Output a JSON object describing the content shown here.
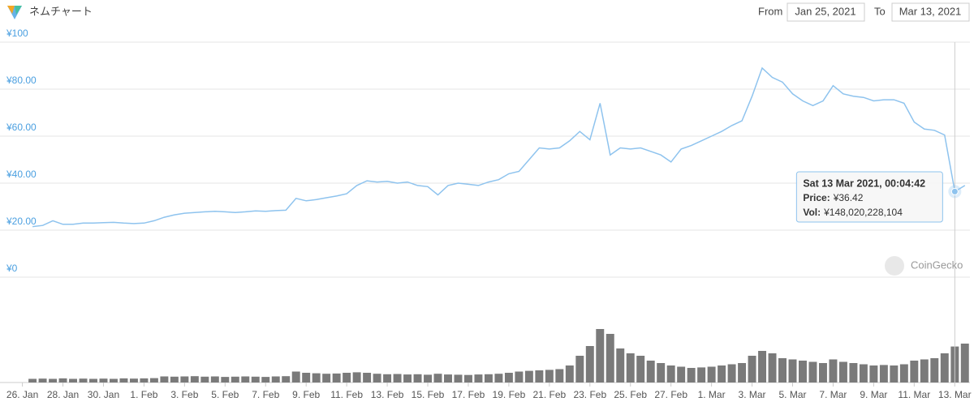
{
  "header": {
    "title": "ネムチャート",
    "from_label": "From",
    "from_date": "Jan 25, 2021",
    "to_label": "To",
    "to_date": "Mar 13, 2021"
  },
  "chart_data": {
    "type": "line",
    "x": [
      "2021-01-26T12:00",
      "2021-01-27T00:00",
      "2021-01-27T12:00",
      "2021-01-28T00:00",
      "2021-01-28T12:00",
      "2021-01-29T00:00",
      "2021-01-29T12:00",
      "2021-01-30T00:00",
      "2021-01-30T12:00",
      "2021-01-31T00:00",
      "2021-01-31T12:00",
      "2021-02-01T00:00",
      "2021-02-01T12:00",
      "2021-02-02T00:00",
      "2021-02-02T12:00",
      "2021-02-03T00:00",
      "2021-02-03T12:00",
      "2021-02-04T00:00",
      "2021-02-04T12:00",
      "2021-02-05T00:00",
      "2021-02-05T12:00",
      "2021-02-06T00:00",
      "2021-02-06T12:00",
      "2021-02-07T00:00",
      "2021-02-07T12:00",
      "2021-02-08T00:00",
      "2021-02-08T12:00",
      "2021-02-09T00:00",
      "2021-02-09T12:00",
      "2021-02-10T00:00",
      "2021-02-10T12:00",
      "2021-02-11T00:00",
      "2021-02-11T12:00",
      "2021-02-12T00:00",
      "2021-02-12T12:00",
      "2021-02-13T00:00",
      "2021-02-13T12:00",
      "2021-02-14T00:00",
      "2021-02-14T12:00",
      "2021-02-15T00:00",
      "2021-02-15T12:00",
      "2021-02-16T00:00",
      "2021-02-16T12:00",
      "2021-02-17T00:00",
      "2021-02-17T12:00",
      "2021-02-18T00:00",
      "2021-02-18T12:00",
      "2021-02-19T00:00",
      "2021-02-19T12:00",
      "2021-02-20T00:00",
      "2021-02-20T12:00",
      "2021-02-21T00:00",
      "2021-02-21T12:00",
      "2021-02-22T00:00",
      "2021-02-22T12:00",
      "2021-02-23T00:00",
      "2021-02-23T12:00",
      "2021-02-24T00:00",
      "2021-02-24T12:00",
      "2021-02-25T00:00",
      "2021-02-25T12:00",
      "2021-02-26T00:00",
      "2021-02-26T12:00",
      "2021-02-27T00:00",
      "2021-02-27T12:00",
      "2021-02-28T00:00",
      "2021-02-28T12:00",
      "2021-03-01T00:00",
      "2021-03-01T12:00",
      "2021-03-02T00:00",
      "2021-03-02T12:00",
      "2021-03-03T00:00",
      "2021-03-03T12:00",
      "2021-03-04T00:00",
      "2021-03-04T12:00",
      "2021-03-05T00:00",
      "2021-03-05T12:00",
      "2021-03-06T00:00",
      "2021-03-06T12:00",
      "2021-03-07T00:00",
      "2021-03-07T12:00",
      "2021-03-08T00:00",
      "2021-03-08T12:00",
      "2021-03-09T00:00",
      "2021-03-09T12:00",
      "2021-03-10T00:00",
      "2021-03-10T12:00",
      "2021-03-11T00:00",
      "2021-03-11T12:00",
      "2021-03-12T00:00",
      "2021-03-12T12:00",
      "2021-03-13T00:04:42",
      "2021-03-13T12:00"
    ],
    "series": [
      {
        "name": "Price",
        "color": "#8ec3ee",
        "values": [
          21.5,
          22,
          24,
          22.5,
          22.5,
          23,
          23,
          23.2,
          23.3,
          23,
          22.8,
          23,
          24,
          25.5,
          26.5,
          27.2,
          27.5,
          27.8,
          28,
          27.8,
          27.5,
          27.8,
          28.2,
          28,
          28.3,
          28.5,
          33.5,
          32.5,
          33,
          33.8,
          34.5,
          35.5,
          39,
          41,
          40.5,
          40.8,
          40,
          40.5,
          39,
          38.5,
          35,
          39,
          40,
          39.5,
          39,
          40.5,
          41.5,
          44,
          45,
          50,
          55,
          54.5,
          55,
          58,
          62,
          58.5,
          74,
          52,
          55,
          54.5,
          55,
          53.5,
          52,
          49,
          54.5,
          56,
          58,
          60,
          62,
          64.5,
          66.5,
          77,
          89,
          85,
          83,
          78,
          75,
          73,
          75,
          81.5,
          78,
          77,
          76.5,
          75,
          75.5,
          75.5,
          74,
          66,
          63,
          62.5,
          60.5,
          36.42,
          39
        ]
      },
      {
        "name": "Vol",
        "color": "#7a7a7a",
        "axis": "y2",
        "values": [
          15000000000,
          16000000000,
          15000000000,
          17000000000,
          15000000000,
          16000000000,
          15000000000,
          16000000000,
          15000000000,
          17000000000,
          16000000000,
          17000000000,
          18000000000,
          25000000000,
          24000000000,
          25000000000,
          26000000000,
          24000000000,
          25000000000,
          23000000000,
          24000000000,
          25000000000,
          24000000000,
          23000000000,
          25000000000,
          26000000000,
          45000000000,
          40000000000,
          38000000000,
          36000000000,
          37000000000,
          40000000000,
          42000000000,
          40000000000,
          36000000000,
          34000000000,
          35000000000,
          33000000000,
          34000000000,
          32000000000,
          36000000000,
          33000000000,
          32000000000,
          31000000000,
          33000000000,
          34000000000,
          36000000000,
          40000000000,
          45000000000,
          48000000000,
          50000000000,
          52000000000,
          55000000000,
          70000000000,
          110000000000,
          150000000000,
          220000000000,
          200000000000,
          140000000000,
          120000000000,
          110000000000,
          90000000000,
          80000000000,
          70000000000,
          65000000000,
          60000000000,
          62000000000,
          65000000000,
          70000000000,
          75000000000,
          80000000000,
          110000000000,
          130000000000,
          120000000000,
          100000000000,
          95000000000,
          90000000000,
          85000000000,
          80000000000,
          95000000000,
          85000000000,
          80000000000,
          75000000000,
          70000000000,
          72000000000,
          70000000000,
          75000000000,
          90000000000,
          95000000000,
          100000000000,
          120000000000,
          148020228104,
          160000000000
        ]
      }
    ],
    "xlim": [
      "2021-01-26T10:00",
      "2021-03-13T18:00"
    ],
    "xticks": [
      {
        "value": "2021-01-26T00:00",
        "label": "26. Jan"
      },
      {
        "value": "2021-01-28T00:00",
        "label": "28. Jan"
      },
      {
        "value": "2021-01-30T00:00",
        "label": "30. Jan"
      },
      {
        "value": "2021-02-01T00:00",
        "label": "1. Feb"
      },
      {
        "value": "2021-02-03T00:00",
        "label": "3. Feb"
      },
      {
        "value": "2021-02-05T00:00",
        "label": "5. Feb"
      },
      {
        "value": "2021-02-07T00:00",
        "label": "7. Feb"
      },
      {
        "value": "2021-02-09T00:00",
        "label": "9. Feb"
      },
      {
        "value": "2021-02-11T00:00",
        "label": "11. Feb"
      },
      {
        "value": "2021-02-13T00:00",
        "label": "13. Feb"
      },
      {
        "value": "2021-02-15T00:00",
        "label": "15. Feb"
      },
      {
        "value": "2021-02-17T00:00",
        "label": "17. Feb"
      },
      {
        "value": "2021-02-19T00:00",
        "label": "19. Feb"
      },
      {
        "value": "2021-02-21T00:00",
        "label": "21. Feb"
      },
      {
        "value": "2021-02-23T00:00",
        "label": "23. Feb"
      },
      {
        "value": "2021-02-25T00:00",
        "label": "25. Feb"
      },
      {
        "value": "2021-02-27T00:00",
        "label": "27. Feb"
      },
      {
        "value": "2021-03-01T00:00",
        "label": "1. Mar"
      },
      {
        "value": "2021-03-03T00:00",
        "label": "3. Mar"
      },
      {
        "value": "2021-03-05T00:00",
        "label": "5. Mar"
      },
      {
        "value": "2021-03-07T00:00",
        "label": "7. Mar"
      },
      {
        "value": "2021-03-09T00:00",
        "label": "9. Mar"
      },
      {
        "value": "2021-03-11T00:00",
        "label": "11. Mar"
      },
      {
        "value": "2021-03-13T00:00",
        "label": "13. Mar"
      }
    ],
    "ylim": [
      0,
      100
    ],
    "yticks": [
      {
        "value": 0,
        "label": "¥0"
      },
      {
        "value": 20,
        "label": "¥20.00"
      },
      {
        "value": 40,
        "label": "¥40.00"
      },
      {
        "value": 60,
        "label": "¥60.00"
      },
      {
        "value": 80,
        "label": "¥80.00"
      },
      {
        "value": 100,
        "label": "¥100"
      }
    ],
    "y2lim": [
      0,
      400000000000
    ],
    "grid": true,
    "watermark": "CoinGecko",
    "tooltip": {
      "title": "Sat 13 Mar 2021, 00:04:42",
      "rows": [
        {
          "label": "Price:",
          "value": 36.42,
          "value_label": "¥36.42"
        },
        {
          "label": "Vol:",
          "value": 148020228104,
          "value_label": "¥148,020,228,104"
        }
      ]
    }
  }
}
